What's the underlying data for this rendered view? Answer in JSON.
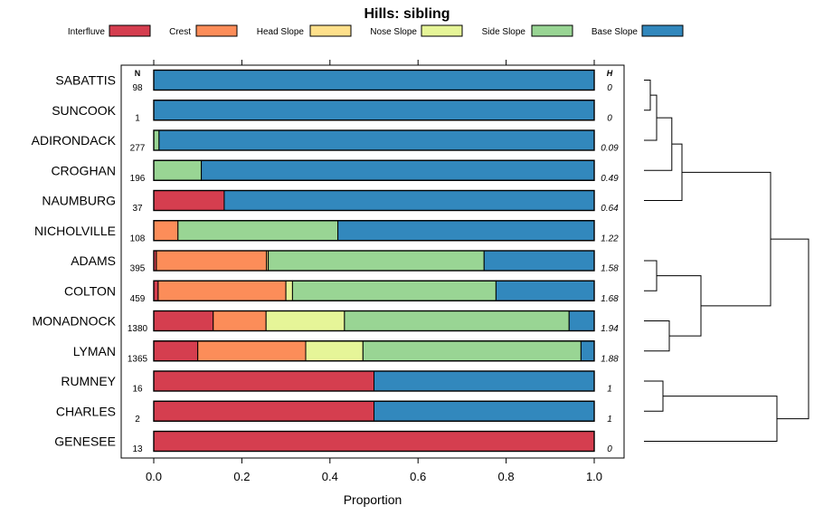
{
  "chart_data": {
    "type": "bar",
    "orientation": "horizontal",
    "stacked": true,
    "title": "Hills: sibling",
    "xlabel": "Proportion",
    "xlim": [
      0,
      1
    ],
    "xticks": [
      0.0,
      0.2,
      0.4,
      0.6,
      0.8,
      1.0
    ],
    "xtick_labels": [
      "0.0",
      "0.2",
      "0.4",
      "0.6",
      "0.8",
      "1.0"
    ],
    "legend_position": "top",
    "n_header": "N",
    "h_header": "H",
    "categories": [
      "SABATTIS",
      "SUNCOOK",
      "ADIRONDACK",
      "CROGHAN",
      "NAUMBURG",
      "NICHOLVILLE",
      "ADAMS",
      "COLTON",
      "MONADNOCK",
      "LYMAN",
      "RUMNEY",
      "CHARLES",
      "GENESEE"
    ],
    "n_values": [
      "98",
      "1",
      "277",
      "196",
      "37",
      "108",
      "395",
      "459",
      "1380",
      "1365",
      "16",
      "2",
      "13"
    ],
    "h_values": [
      "0",
      "0",
      "0.09",
      "0.49",
      "0.64",
      "1.22",
      "1.58",
      "1.68",
      "1.94",
      "1.88",
      "1",
      "1",
      "0"
    ],
    "series": [
      {
        "name": "Interfluve",
        "color": "#d53e4f",
        "values": [
          0,
          0,
          0,
          0,
          0.16,
          0,
          0.006,
          0.01,
          0.135,
          0.1,
          0.5,
          0.5,
          1.0
        ]
      },
      {
        "name": "Crest",
        "color": "#fc8d59",
        "values": [
          0,
          0,
          0,
          0,
          0,
          0.055,
          0.25,
          0.29,
          0.12,
          0.245,
          0,
          0,
          0
        ]
      },
      {
        "name": "Head Slope",
        "color": "#fee08b",
        "values": [
          0,
          0,
          0,
          0,
          0,
          0,
          0.004,
          0,
          0,
          0,
          0,
          0,
          0
        ]
      },
      {
        "name": "Nose Slope",
        "color": "#e6f598",
        "values": [
          0,
          0,
          0,
          0,
          0,
          0,
          0,
          0.015,
          0.178,
          0.13,
          0,
          0,
          0
        ]
      },
      {
        "name": "Side Slope",
        "color": "#99d594",
        "values": [
          0,
          0,
          0.012,
          0.108,
          0,
          0.363,
          0.49,
          0.462,
          0.51,
          0.495,
          0,
          0,
          0
        ]
      },
      {
        "name": "Base Slope",
        "color": "#3288bd",
        "values": [
          1.0,
          1.0,
          0.988,
          0.892,
          0.84,
          0.582,
          0.25,
          0.223,
          0.057,
          0.03,
          0.5,
          0.5,
          0
        ]
      }
    ],
    "dendrogram": {
      "description": "hierarchical clustering of the 13 soil series",
      "merges": [
        [
          0,
          1,
          0.05
        ],
        [
          2,
          -1,
          0.1
        ],
        [
          3,
          -2,
          0.22
        ],
        [
          4,
          -3,
          0.3
        ],
        [
          6,
          7,
          0.1
        ],
        [
          8,
          9,
          0.2
        ],
        [
          -5,
          -6,
          0.45
        ],
        [
          -4,
          -7,
          1.0
        ],
        [
          10,
          11,
          0.15
        ],
        [
          -9,
          12,
          1.05
        ],
        [
          -8,
          -10,
          1.3
        ]
      ]
    }
  }
}
